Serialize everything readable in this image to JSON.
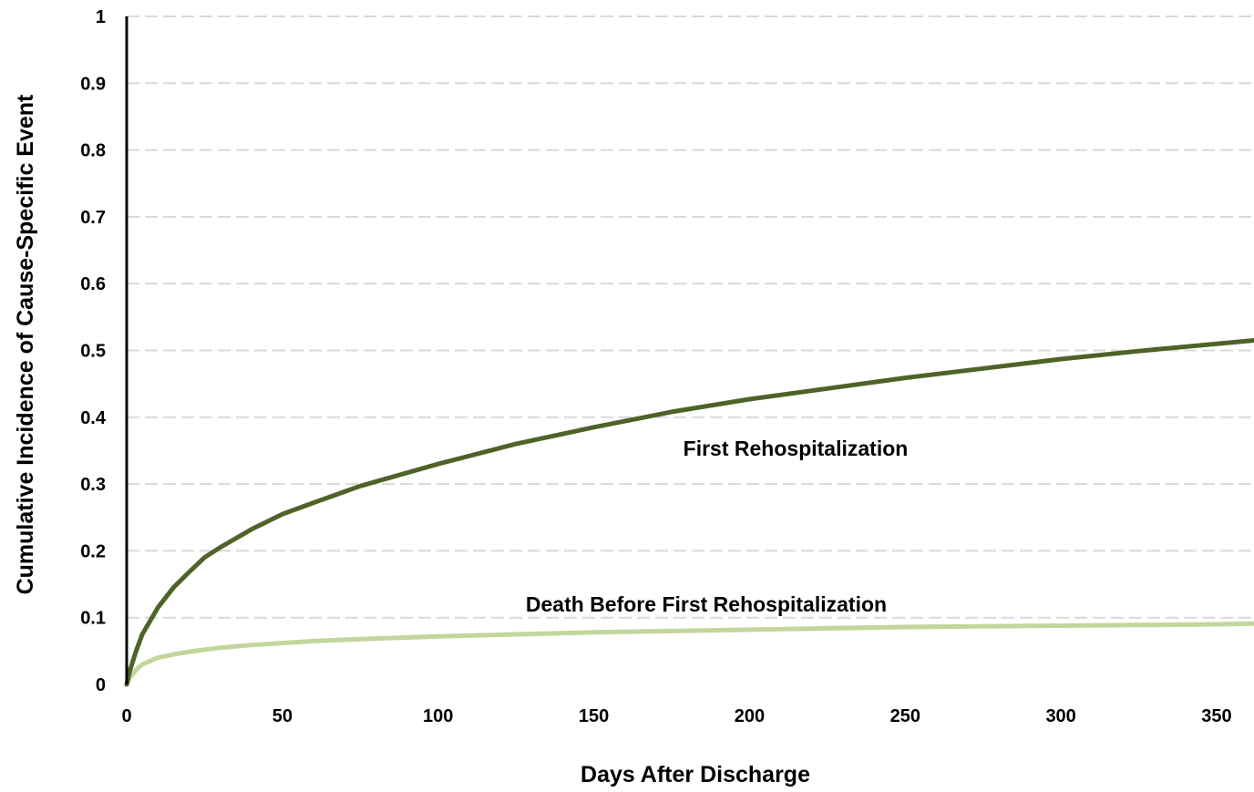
{
  "chart_data": {
    "type": "line",
    "xlabel": "Days After Discharge",
    "ylabel": "Cumulative Incidence of Cause-Specific Event",
    "xlim": [
      0,
      362
    ],
    "ylim": [
      0,
      1
    ],
    "x_ticks": [
      "0",
      "50",
      "100",
      "150",
      "200",
      "250",
      "300",
      "350"
    ],
    "y_ticks": [
      "0",
      "0.1",
      "0.2",
      "0.3",
      "0.4",
      "0.5",
      "0.6",
      "0.7",
      "0.8",
      "0.9",
      "1"
    ],
    "grid": "horizontal dashed",
    "series": [
      {
        "name": "First Rehospitalization",
        "color": "#4f6228",
        "x": [
          0,
          1,
          3,
          5,
          10,
          15,
          20,
          25,
          30,
          40,
          50,
          60,
          75,
          100,
          125,
          150,
          175,
          200,
          225,
          250,
          275,
          300,
          325,
          350,
          362
        ],
        "y": [
          0,
          0.02,
          0.05,
          0.075,
          0.115,
          0.145,
          0.168,
          0.19,
          0.205,
          0.232,
          0.255,
          0.272,
          0.297,
          0.33,
          0.36,
          0.385,
          0.408,
          0.427,
          0.443,
          0.459,
          0.473,
          0.487,
          0.499,
          0.51,
          0.515
        ]
      },
      {
        "name": "Death Before First Rehospitalization",
        "color": "#c3d69b",
        "x": [
          0,
          1,
          3,
          5,
          10,
          15,
          20,
          25,
          30,
          40,
          50,
          60,
          75,
          100,
          125,
          150,
          175,
          200,
          225,
          250,
          275,
          300,
          325,
          350,
          362
        ],
        "y": [
          0,
          0.01,
          0.022,
          0.03,
          0.04,
          0.045,
          0.049,
          0.052,
          0.055,
          0.059,
          0.062,
          0.065,
          0.068,
          0.072,
          0.075,
          0.078,
          0.08,
          0.082,
          0.084,
          0.086,
          0.087,
          0.088,
          0.089,
          0.09,
          0.091
        ]
      }
    ]
  }
}
